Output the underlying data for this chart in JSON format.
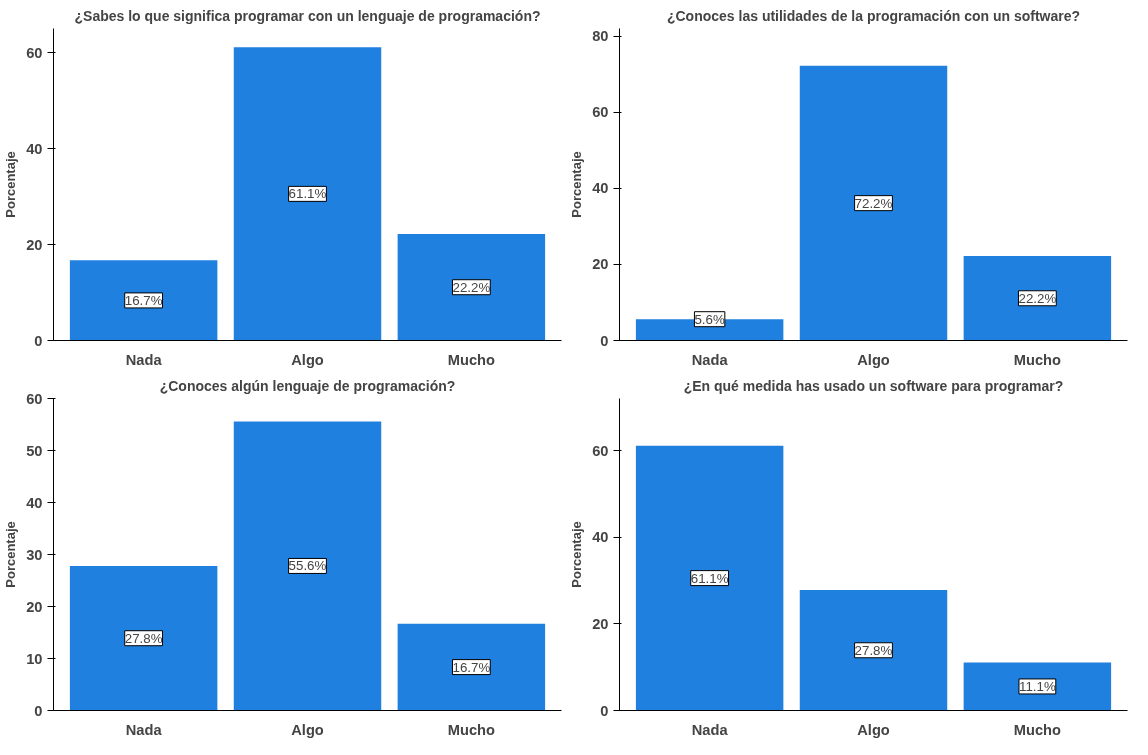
{
  "chart_data": [
    {
      "type": "bar",
      "title": "¿Sabes lo que significa programar con un lenguaje de programación?",
      "ylabel": "Porcentaje",
      "categories": [
        "Nada",
        "Algo",
        "Mucho"
      ],
      "values": [
        16.7,
        61.1,
        22.2
      ],
      "color": "#1f80e0",
      "ylim": [
        0,
        65
      ],
      "yticks": [
        0,
        20,
        40,
        60
      ],
      "data_labels": true,
      "value_labels": [
        "16.7%",
        "61.1%",
        "22.2%"
      ],
      "grid": false
    },
    {
      "type": "bar",
      "title": "¿Conoces las utilidades de la programación con un software?",
      "ylabel": "Porcentaje",
      "categories": [
        "Nada",
        "Algo",
        "Mucho"
      ],
      "values": [
        5.6,
        72.2,
        22.2
      ],
      "color": "#1f80e0",
      "ylim": [
        0,
        82
      ],
      "yticks": [
        0,
        20,
        40,
        60,
        80
      ],
      "data_labels": true,
      "value_labels": [
        "5.6%",
        "72.2%",
        "22.2%"
      ],
      "grid": false
    },
    {
      "type": "bar",
      "title": "¿Conoces algún lenguaje de programación?",
      "ylabel": "Porcentaje",
      "categories": [
        "Nada",
        "Algo",
        "Mucho"
      ],
      "values": [
        27.8,
        55.6,
        16.7
      ],
      "color": "#1f80e0",
      "ylim": [
        0,
        60
      ],
      "yticks": [
        0,
        10,
        20,
        30,
        40,
        50,
        60
      ],
      "data_labels": true,
      "value_labels": [
        "27.8%",
        "55.6%",
        "16.7%"
      ],
      "grid": false
    },
    {
      "type": "bar",
      "title": "¿En qué medida has usado un software para programar?",
      "ylabel": "Porcentaje",
      "categories": [
        "Nada",
        "Algo",
        "Mucho"
      ],
      "values": [
        61.1,
        27.8,
        11.1
      ],
      "color": "#1f80e0",
      "ylim": [
        0,
        72
      ],
      "yticks": [
        0,
        20,
        40,
        60
      ],
      "data_labels": true,
      "value_labels": [
        "61.1%",
        "27.8%",
        "11.1%"
      ],
      "grid": false
    }
  ]
}
